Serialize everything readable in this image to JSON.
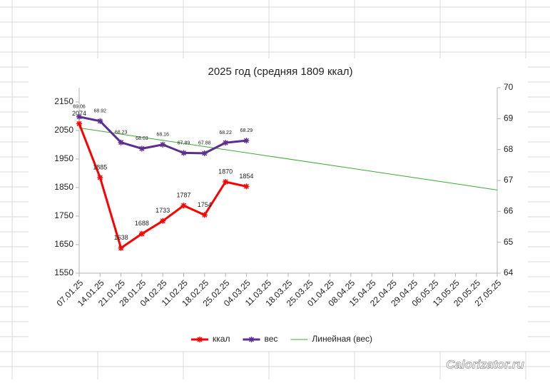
{
  "chart_data": {
    "type": "line",
    "title": "2025 год (средняя 1809 ккал)",
    "categories": [
      "07.01.25",
      "14.01.25",
      "21.01.25",
      "28.01.25",
      "04.02.25",
      "11.02.25",
      "18.02.25",
      "25.02.25",
      "04.03.25",
      "11.03.25",
      "18.03.25",
      "25.03.25",
      "01.04.25",
      "08.04.25",
      "15.04.25",
      "22.04.25",
      "29.04.25",
      "06.05.25",
      "13.05.25",
      "20.05.25",
      "27.05.25"
    ],
    "series": [
      {
        "name": "ккал",
        "color": "#ff0000",
        "axis": "y",
        "values": [
          2074,
          1885,
          1638,
          1688,
          1733,
          1787,
          1754,
          1870,
          1854,
          null,
          null,
          null,
          null,
          null,
          null,
          null,
          null,
          null,
          null,
          null,
          null
        ]
      },
      {
        "name": "вес",
        "color": "#5b2f91",
        "axis": "y2",
        "values": [
          69.06,
          68.92,
          68.23,
          68.03,
          68.16,
          67.89,
          67.88,
          68.22,
          68.29,
          null,
          null,
          null,
          null,
          null,
          null,
          null,
          null,
          null,
          null,
          null,
          null
        ],
        "trendline": {
          "name": "Линейная (вес)",
          "color": "#3aa935",
          "type": "linear"
        }
      }
    ],
    "ylim": [
      1550,
      2200
    ],
    "yticks": [
      1550,
      1650,
      1750,
      1850,
      1950,
      2050,
      2150
    ],
    "y2lim": [
      64,
      70
    ],
    "y2ticks": [
      64,
      65,
      66,
      67,
      68,
      69,
      70
    ],
    "legend": "bottom",
    "watermark": "Calorizator.ru"
  }
}
